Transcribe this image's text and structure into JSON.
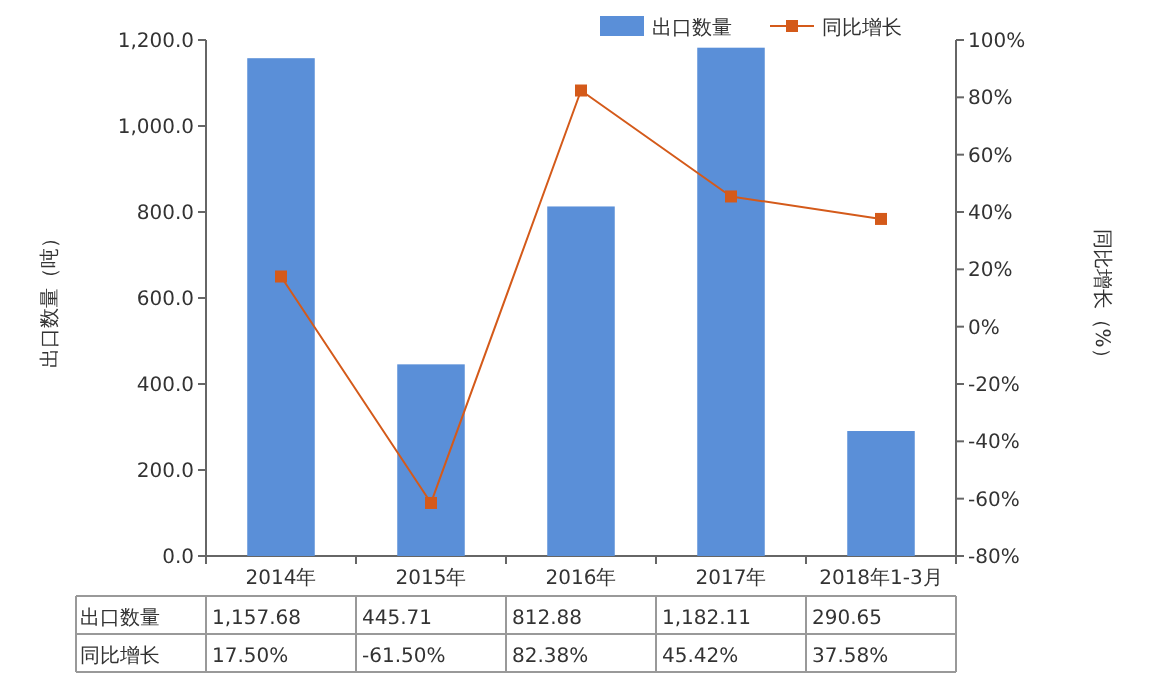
{
  "chart_data": {
    "type": "bar",
    "categories": [
      "2014年",
      "2015年",
      "2016年",
      "2017年",
      "2018年1-3月"
    ],
    "ylabel": "出口数量（吨）",
    "y2label": "同比增长（%）",
    "ylim": [
      0,
      1200
    ],
    "yticks": [
      {
        "value": 0,
        "label": "0.0"
      },
      {
        "value": 200,
        "label": "200.0"
      },
      {
        "value": 400,
        "label": "400.0"
      },
      {
        "value": 600,
        "label": "600.0"
      },
      {
        "value": 800,
        "label": "800.0"
      },
      {
        "value": 1000,
        "label": "1,000.0"
      },
      {
        "value": 1200,
        "label": "1,200.0"
      }
    ],
    "y2lim": [
      -80,
      100
    ],
    "y2ticks": [
      {
        "value": -80,
        "label": "-80%"
      },
      {
        "value": -60,
        "label": "-60%"
      },
      {
        "value": -40,
        "label": "-40%"
      },
      {
        "value": -20,
        "label": "-20%"
      },
      {
        "value": 0,
        "label": "0%"
      },
      {
        "value": 20,
        "label": "20%"
      },
      {
        "value": 40,
        "label": "40%"
      },
      {
        "value": 60,
        "label": "60%"
      },
      {
        "value": 80,
        "label": "80%"
      },
      {
        "value": 100,
        "label": "100%"
      }
    ],
    "legend": "top right",
    "grid": false,
    "series": [
      {
        "name": "出口数量",
        "color": "#5a8fd8",
        "values": [
          1157.68,
          445.71,
          812.88,
          1182.11,
          290.65
        ],
        "value_labels": [
          "1,157.68",
          "445.71",
          "812.88",
          "1,182.11",
          "290.65"
        ]
      },
      {
        "name": "同比增长",
        "type": "line",
        "axis": "y2",
        "color": "#d45a1a",
        "marker": "square",
        "line_style": "solid",
        "values": [
          17.5,
          -61.5,
          82.38,
          45.42,
          37.58
        ],
        "value_labels": [
          "17.50%",
          "-61.50%",
          "82.38%",
          "45.42%",
          "37.58%"
        ]
      }
    ]
  }
}
